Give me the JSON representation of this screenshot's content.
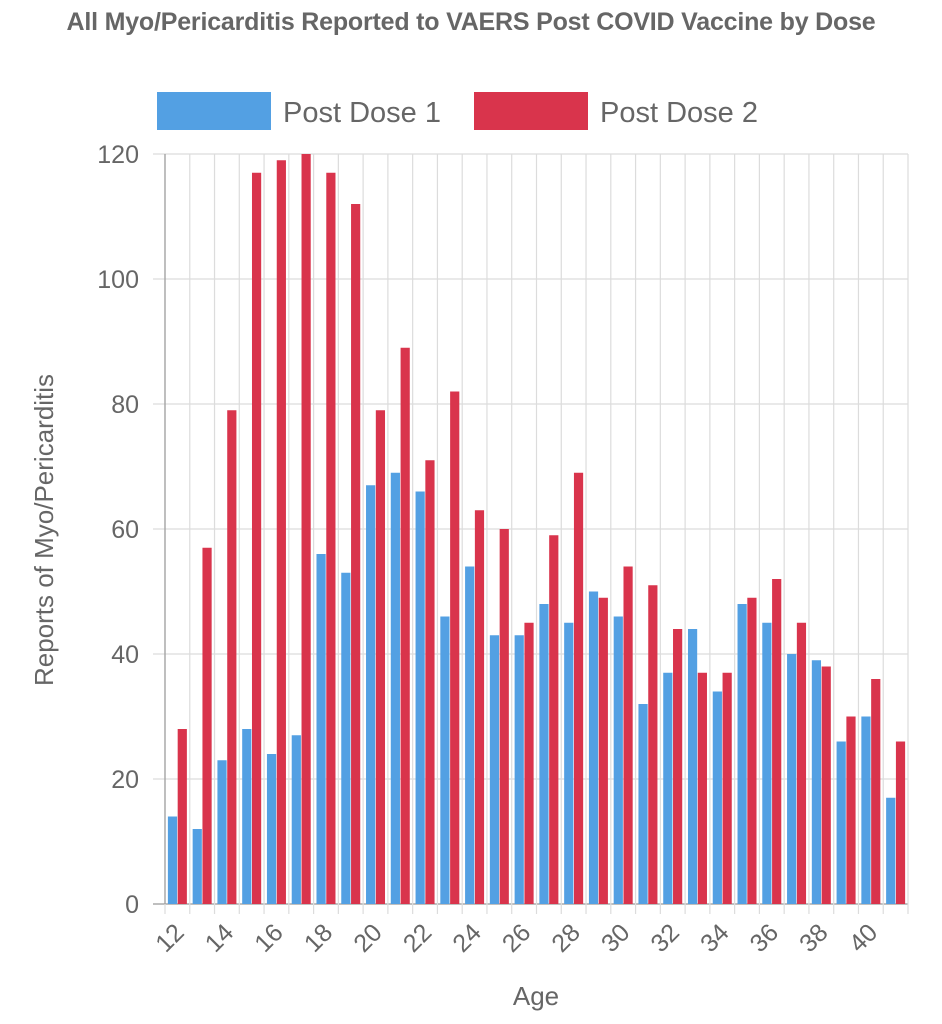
{
  "chart_data": {
    "type": "bar",
    "title": "All Myo/Pericarditis Reported to VAERS Post COVID Vaccine by Dose",
    "xlabel": "Age",
    "ylabel": "Reports of Myo/Pericarditis",
    "ylim": [
      0,
      120
    ],
    "yticks": [
      0,
      20,
      40,
      60,
      80,
      100,
      120
    ],
    "categories": [
      "12",
      "13",
      "14",
      "15",
      "16",
      "17",
      "18",
      "19",
      "20",
      "21",
      "22",
      "23",
      "24",
      "25",
      "26",
      "27",
      "28",
      "29",
      "30",
      "31",
      "32",
      "33",
      "34",
      "35",
      "36",
      "37",
      "38",
      "39",
      "40",
      "41"
    ],
    "x_tick_labels": [
      "12",
      "14",
      "16",
      "18",
      "20",
      "22",
      "24",
      "26",
      "28",
      "30",
      "32",
      "34",
      "36",
      "38",
      "40"
    ],
    "grid": true,
    "legend_position": "top",
    "series": [
      {
        "name": "Post Dose 1",
        "color": "#53a0e3",
        "values": [
          14,
          12,
          23,
          28,
          24,
          27,
          56,
          53,
          67,
          69,
          66,
          46,
          54,
          43,
          43,
          48,
          45,
          50,
          46,
          32,
          37,
          44,
          34,
          48,
          45,
          40,
          39,
          26,
          30,
          17
        ]
      },
      {
        "name": "Post Dose 2",
        "color": "#d9344c",
        "values": [
          28,
          57,
          79,
          117,
          119,
          120,
          117,
          112,
          79,
          89,
          71,
          82,
          63,
          60,
          45,
          59,
          69,
          49,
          54,
          51,
          44,
          37,
          37,
          49,
          52,
          45,
          38,
          30,
          36,
          26
        ]
      }
    ]
  }
}
